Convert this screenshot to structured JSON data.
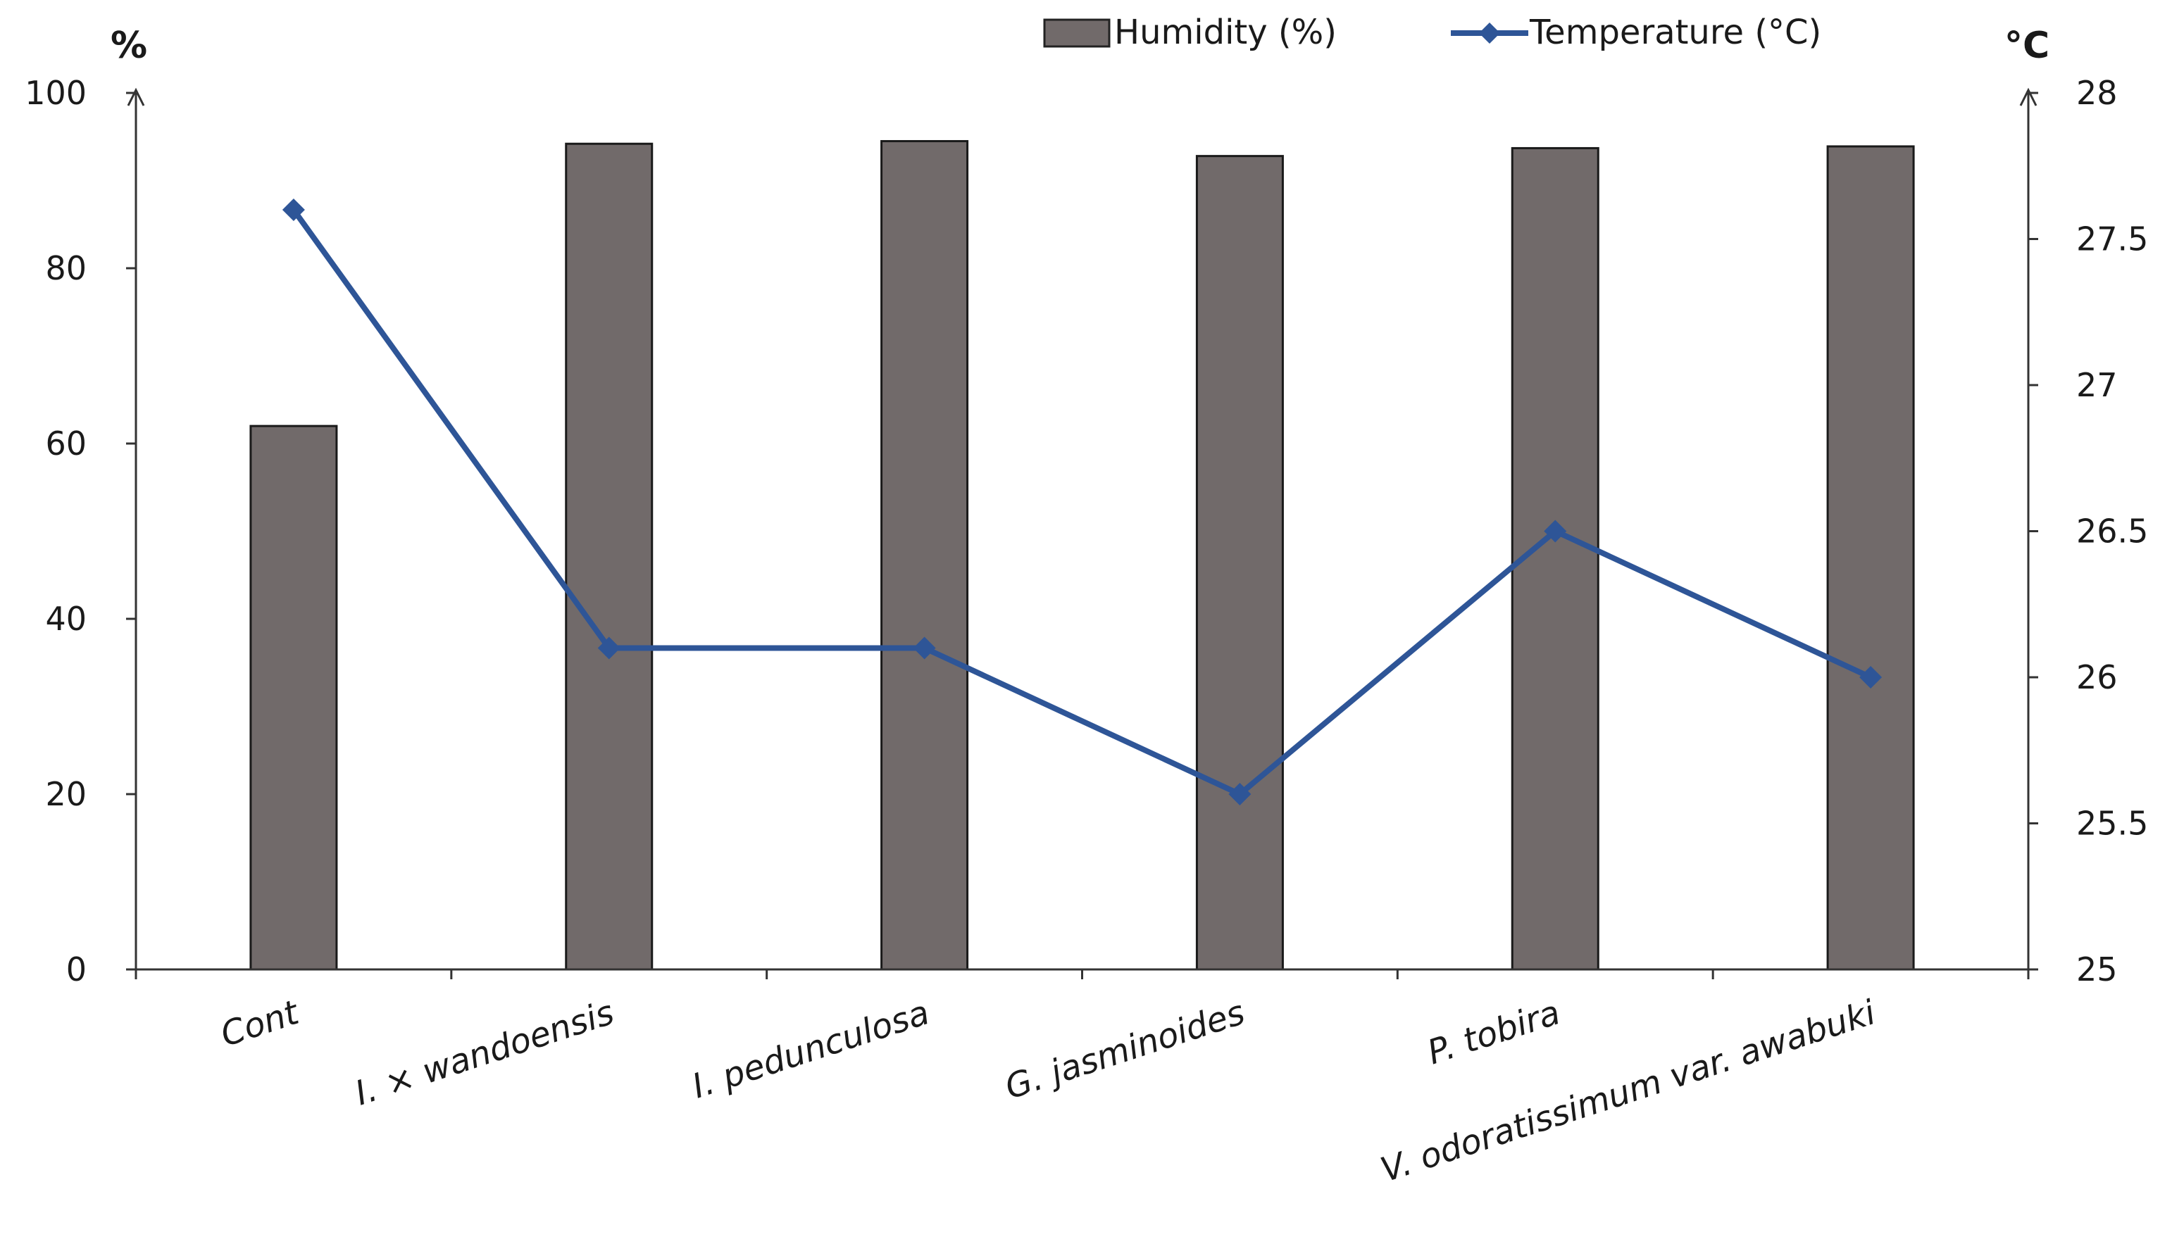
{
  "chart_data": {
    "type": "bar+line",
    "categories": [
      "Cont",
      "I. × wandoensis",
      "I. pedunculosa",
      "G. jasminoides",
      "P. tobira",
      "V. odoratissimum var. awabuki"
    ],
    "series": [
      {
        "name": "Humidity (%)",
        "type": "bar",
        "axis": "left",
        "color": "#716a6a",
        "values": [
          62,
          94.2,
          94.5,
          92.8,
          93.7,
          93.9
        ]
      },
      {
        "name": "Temperature (°C)",
        "type": "line",
        "axis": "right",
        "color": "#2e5597",
        "values": [
          27.6,
          26.1,
          26.1,
          25.6,
          26.5,
          26.0
        ]
      }
    ],
    "left_axis": {
      "unit": "%",
      "ylim": [
        0,
        100
      ],
      "ticks": [
        0,
        20,
        40,
        60,
        80,
        100
      ]
    },
    "right_axis": {
      "unit": "°C",
      "ylim": [
        25,
        28
      ],
      "ticks": [
        25,
        25.5,
        26,
        26.5,
        27,
        27.5,
        28
      ],
      "tick_labels": [
        "25",
        "25.5",
        "26",
        "26.5",
        "27",
        "27.5",
        "28"
      ]
    },
    "legend": {
      "position": "top-right",
      "entries": [
        "Humidity (%)",
        "Temperature (°C)"
      ]
    },
    "grid": false
  }
}
